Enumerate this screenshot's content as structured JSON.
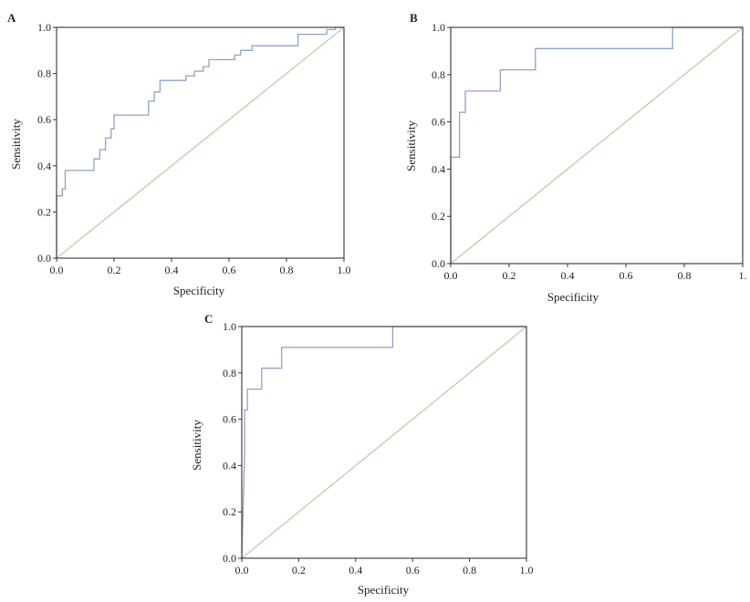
{
  "figure": {
    "panels": [
      {
        "letter": "A",
        "xlabel": "Specificity",
        "ylabel": "Sensitivity"
      },
      {
        "letter": "B",
        "xlabel": "Specificity",
        "ylabel": "Sensitivity"
      },
      {
        "letter": "C",
        "xlabel": "Specificity",
        "ylabel": "Sensitivity"
      }
    ]
  },
  "colors": {
    "roc_curve": "#8fa2c6",
    "reference_line": "#b9d4a8",
    "axis": "#333333"
  },
  "chart_data": [
    {
      "type": "line",
      "title": "A",
      "xlabel": "Specificity",
      "ylabel": "Sensitivity",
      "xlim": [
        0,
        1
      ],
      "ylim": [
        0,
        1
      ],
      "xticks": [
        "0.0",
        "0.2",
        "0.4",
        "0.6",
        "0.8",
        "1.0"
      ],
      "yticks": [
        "0.0",
        "0.2",
        "0.4",
        "0.6",
        "0.8",
        "1.0"
      ],
      "grid": false,
      "series": [
        {
          "role": "roc",
          "points": [
            [
              0,
              0
            ],
            [
              0,
              0.27
            ],
            [
              0.02,
              0.27
            ],
            [
              0.02,
              0.3
            ],
            [
              0.03,
              0.3
            ],
            [
              0.03,
              0.38
            ],
            [
              0.13,
              0.38
            ],
            [
              0.13,
              0.43
            ],
            [
              0.15,
              0.43
            ],
            [
              0.15,
              0.47
            ],
            [
              0.17,
              0.47
            ],
            [
              0.17,
              0.52
            ],
            [
              0.19,
              0.52
            ],
            [
              0.19,
              0.56
            ],
            [
              0.2,
              0.56
            ],
            [
              0.2,
              0.62
            ],
            [
              0.32,
              0.62
            ],
            [
              0.32,
              0.68
            ],
            [
              0.34,
              0.68
            ],
            [
              0.34,
              0.72
            ],
            [
              0.36,
              0.72
            ],
            [
              0.36,
              0.77
            ],
            [
              0.45,
              0.77
            ],
            [
              0.45,
              0.79
            ],
            [
              0.48,
              0.79
            ],
            [
              0.48,
              0.81
            ],
            [
              0.51,
              0.81
            ],
            [
              0.51,
              0.83
            ],
            [
              0.53,
              0.83
            ],
            [
              0.53,
              0.86
            ],
            [
              0.62,
              0.86
            ],
            [
              0.62,
              0.88
            ],
            [
              0.64,
              0.88
            ],
            [
              0.64,
              0.9
            ],
            [
              0.68,
              0.9
            ],
            [
              0.68,
              0.92
            ],
            [
              0.84,
              0.92
            ],
            [
              0.84,
              0.97
            ],
            [
              0.94,
              0.97
            ],
            [
              0.94,
              0.99
            ],
            [
              0.97,
              0.99
            ],
            [
              0.97,
              1
            ],
            [
              1,
              1
            ]
          ]
        },
        {
          "role": "reference",
          "points": [
            [
              0,
              0
            ],
            [
              1,
              1
            ]
          ]
        }
      ]
    },
    {
      "type": "line",
      "title": "B",
      "xlabel": "Specificity",
      "ylabel": "Sensitivity",
      "xlim": [
        0,
        1
      ],
      "ylim": [
        0,
        1
      ],
      "xticks": [
        "0.0",
        "0.2",
        "0.4",
        "0.6",
        "0.8",
        "1."
      ],
      "yticks": [
        "0.0",
        "0.2",
        "0.4",
        "0.6",
        "0.8",
        "1.0"
      ],
      "grid": false,
      "series": [
        {
          "role": "roc",
          "points": [
            [
              0,
              0
            ],
            [
              0,
              0.45
            ],
            [
              0.03,
              0.45
            ],
            [
              0.03,
              0.64
            ],
            [
              0.05,
              0.64
            ],
            [
              0.05,
              0.73
            ],
            [
              0.17,
              0.73
            ],
            [
              0.17,
              0.82
            ],
            [
              0.29,
              0.82
            ],
            [
              0.29,
              0.91
            ],
            [
              0.76,
              0.91
            ],
            [
              0.76,
              1
            ],
            [
              1,
              1
            ]
          ]
        },
        {
          "role": "reference",
          "points": [
            [
              0,
              0
            ],
            [
              1,
              1
            ]
          ]
        }
      ]
    },
    {
      "type": "line",
      "title": "C",
      "xlabel": "Specificity",
      "ylabel": "Sensitivity",
      "xlim": [
        0,
        1
      ],
      "ylim": [
        0,
        1
      ],
      "xticks": [
        "0.0",
        "0.2",
        "0.4",
        "0.6",
        "0.8",
        "1.0"
      ],
      "yticks": [
        "0.0",
        "0.2",
        "0.4",
        "0.6",
        "0.8",
        "1.0"
      ],
      "grid": false,
      "series": [
        {
          "role": "roc",
          "points": [
            [
              0,
              0
            ],
            [
              0.01,
              0.45
            ],
            [
              0.01,
              0.64
            ],
            [
              0.02,
              0.64
            ],
            [
              0.02,
              0.73
            ],
            [
              0.07,
              0.73
            ],
            [
              0.07,
              0.82
            ],
            [
              0.14,
              0.82
            ],
            [
              0.14,
              0.91
            ],
            [
              0.53,
              0.91
            ],
            [
              0.53,
              1
            ],
            [
              1,
              1
            ]
          ]
        },
        {
          "role": "reference",
          "points": [
            [
              0,
              0
            ],
            [
              1,
              1
            ]
          ]
        }
      ]
    }
  ]
}
